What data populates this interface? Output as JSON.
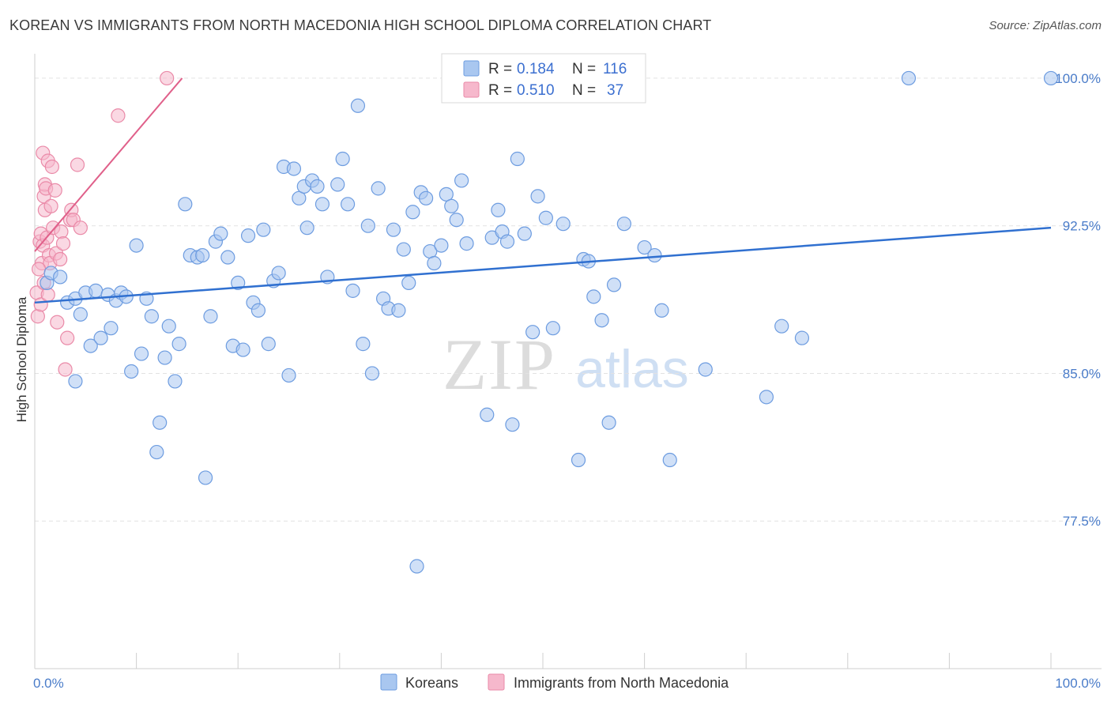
{
  "title": "KOREAN VS IMMIGRANTS FROM NORTH MACEDONIA HIGH SCHOOL DIPLOMA CORRELATION CHART",
  "source": "Source: ZipAtlas.com",
  "watermark": {
    "zip": "ZIP",
    "atlas": "atlas"
  },
  "colors": {
    "blue_fill": "#a9c7f0",
    "blue_stroke": "#6d9ce0",
    "blue_line": "#3070d0",
    "pink_fill": "#f6b8cc",
    "pink_stroke": "#ea8aa8",
    "pink_line": "#e0608a",
    "tick_text": "#4a7cc9",
    "grid": "#e2e2e2"
  },
  "chart_data": {
    "type": "scatter",
    "title": "KOREAN VS IMMIGRANTS FROM NORTH MACEDONIA HIGH SCHOOL DIPLOMA CORRELATION CHART",
    "xlabel": "",
    "ylabel": "High School Diploma",
    "xlim": [
      0,
      100
    ],
    "ylim": [
      70,
      100.8
    ],
    "x_tick_labels": [
      "0.0%",
      "100.0%"
    ],
    "y_ticks": [
      77.5,
      85.0,
      92.5,
      100.0
    ],
    "y_tick_labels": [
      "77.5%",
      "85.0%",
      "92.5%",
      "100.0%"
    ],
    "grid": true,
    "legend": [
      {
        "r_label": "R =",
        "r": "0.184",
        "n_label": "N =",
        "n": "116"
      },
      {
        "r_label": "R =",
        "r": "0.510",
        "n_label": "N =",
        "n": "37"
      }
    ],
    "series": [
      {
        "name": "Koreans",
        "color": "blue",
        "trend": {
          "x0": 0,
          "y0": 88.6,
          "x1": 100,
          "y1": 92.4
        },
        "points": [
          [
            1.2,
            89.6
          ],
          [
            1.6,
            90.1
          ],
          [
            2.5,
            89.9
          ],
          [
            3.2,
            88.6
          ],
          [
            4.0,
            88.8
          ],
          [
            4.5,
            88.0
          ],
          [
            4.0,
            84.6
          ],
          [
            5.0,
            89.1
          ],
          [
            5.5,
            86.4
          ],
          [
            6.0,
            89.2
          ],
          [
            6.5,
            86.8
          ],
          [
            7.2,
            89.0
          ],
          [
            7.5,
            87.3
          ],
          [
            8.0,
            88.7
          ],
          [
            8.5,
            89.1
          ],
          [
            9.0,
            88.9
          ],
          [
            9.5,
            85.1
          ],
          [
            10.0,
            91.5
          ],
          [
            10.5,
            86.0
          ],
          [
            11.0,
            88.8
          ],
          [
            11.5,
            87.9
          ],
          [
            12.0,
            81.0
          ],
          [
            12.3,
            82.5
          ],
          [
            12.8,
            85.8
          ],
          [
            13.2,
            87.4
          ],
          [
            13.8,
            84.6
          ],
          [
            14.2,
            86.5
          ],
          [
            14.8,
            93.6
          ],
          [
            15.3,
            91.0
          ],
          [
            16.0,
            90.9
          ],
          [
            16.5,
            91.0
          ],
          [
            16.8,
            79.7
          ],
          [
            17.3,
            87.9
          ],
          [
            17.8,
            91.7
          ],
          [
            18.3,
            92.1
          ],
          [
            19.0,
            90.9
          ],
          [
            19.5,
            86.4
          ],
          [
            20.0,
            89.6
          ],
          [
            20.5,
            86.2
          ],
          [
            21.0,
            92.0
          ],
          [
            21.5,
            88.6
          ],
          [
            22.0,
            88.2
          ],
          [
            22.5,
            92.3
          ],
          [
            23.0,
            86.5
          ],
          [
            23.5,
            89.7
          ],
          [
            24.0,
            90.1
          ],
          [
            24.5,
            95.5
          ],
          [
            25.0,
            84.9
          ],
          [
            25.5,
            95.4
          ],
          [
            26.0,
            93.9
          ],
          [
            26.5,
            94.5
          ],
          [
            26.8,
            92.4
          ],
          [
            27.3,
            94.8
          ],
          [
            27.8,
            94.5
          ],
          [
            28.3,
            93.6
          ],
          [
            28.8,
            89.9
          ],
          [
            29.8,
            94.6
          ],
          [
            30.3,
            95.9
          ],
          [
            30.8,
            93.6
          ],
          [
            31.3,
            89.2
          ],
          [
            31.8,
            98.6
          ],
          [
            32.3,
            86.5
          ],
          [
            32.8,
            92.5
          ],
          [
            33.2,
            85.0
          ],
          [
            33.8,
            94.4
          ],
          [
            34.3,
            88.8
          ],
          [
            34.8,
            88.3
          ],
          [
            35.3,
            92.3
          ],
          [
            35.8,
            88.2
          ],
          [
            36.3,
            91.3
          ],
          [
            36.8,
            89.6
          ],
          [
            37.2,
            93.2
          ],
          [
            37.6,
            75.2
          ],
          [
            38.0,
            94.2
          ],
          [
            38.5,
            93.9
          ],
          [
            38.9,
            91.2
          ],
          [
            39.3,
            90.6
          ],
          [
            40.0,
            91.5
          ],
          [
            40.5,
            94.1
          ],
          [
            41.0,
            93.5
          ],
          [
            41.5,
            92.8
          ],
          [
            42.0,
            94.8
          ],
          [
            42.5,
            91.6
          ],
          [
            44.5,
            82.9
          ],
          [
            45.0,
            91.9
          ],
          [
            45.6,
            93.3
          ],
          [
            46.0,
            92.2
          ],
          [
            46.5,
            91.7
          ],
          [
            47.0,
            82.4
          ],
          [
            47.5,
            95.9
          ],
          [
            48.2,
            92.1
          ],
          [
            49.0,
            87.1
          ],
          [
            49.5,
            94.0
          ],
          [
            50.3,
            92.9
          ],
          [
            51.0,
            87.3
          ],
          [
            52.0,
            92.6
          ],
          [
            53.5,
            80.6
          ],
          [
            54.0,
            90.8
          ],
          [
            54.5,
            90.7
          ],
          [
            55.0,
            88.9
          ],
          [
            55.8,
            87.7
          ],
          [
            56.5,
            82.5
          ],
          [
            57.0,
            89.5
          ],
          [
            58.0,
            92.6
          ],
          [
            60.0,
            91.4
          ],
          [
            61.0,
            91.0
          ],
          [
            61.7,
            88.2
          ],
          [
            62.5,
            80.6
          ],
          [
            66.0,
            85.2
          ],
          [
            72.0,
            83.8
          ],
          [
            73.5,
            87.4
          ],
          [
            75.5,
            86.8
          ],
          [
            86.0,
            100.0
          ],
          [
            100.0,
            100.0
          ]
        ]
      },
      {
        "name": "Immigrants from North Macedonia",
        "color": "pink",
        "trend": {
          "x0": 0,
          "y0": 91.2,
          "x1": 14.5,
          "y1": 100.0
        },
        "points": [
          [
            0.2,
            89.1
          ],
          [
            0.3,
            87.9
          ],
          [
            0.5,
            91.7
          ],
          [
            0.6,
            92.1
          ],
          [
            0.7,
            90.6
          ],
          [
            0.8,
            91.5
          ],
          [
            0.8,
            96.2
          ],
          [
            0.9,
            94.0
          ],
          [
            1.0,
            93.3
          ],
          [
            1.0,
            94.6
          ],
          [
            1.1,
            94.4
          ],
          [
            1.2,
            91.9
          ],
          [
            1.3,
            95.8
          ],
          [
            1.4,
            91.0
          ],
          [
            1.5,
            90.6
          ],
          [
            1.6,
            93.5
          ],
          [
            1.7,
            95.5
          ],
          [
            1.8,
            92.4
          ],
          [
            2.0,
            94.3
          ],
          [
            2.1,
            91.1
          ],
          [
            2.2,
            87.6
          ],
          [
            2.5,
            90.8
          ],
          [
            2.6,
            92.2
          ],
          [
            2.8,
            91.6
          ],
          [
            3.0,
            85.2
          ],
          [
            3.2,
            86.8
          ],
          [
            3.5,
            92.8
          ],
          [
            3.6,
            93.3
          ],
          [
            3.8,
            92.8
          ],
          [
            4.2,
            95.6
          ],
          [
            4.5,
            92.4
          ],
          [
            0.4,
            90.3
          ],
          [
            0.6,
            88.5
          ],
          [
            0.9,
            89.6
          ],
          [
            1.3,
            89.0
          ],
          [
            8.2,
            98.1
          ],
          [
            13.0,
            100.0
          ]
        ]
      }
    ]
  }
}
